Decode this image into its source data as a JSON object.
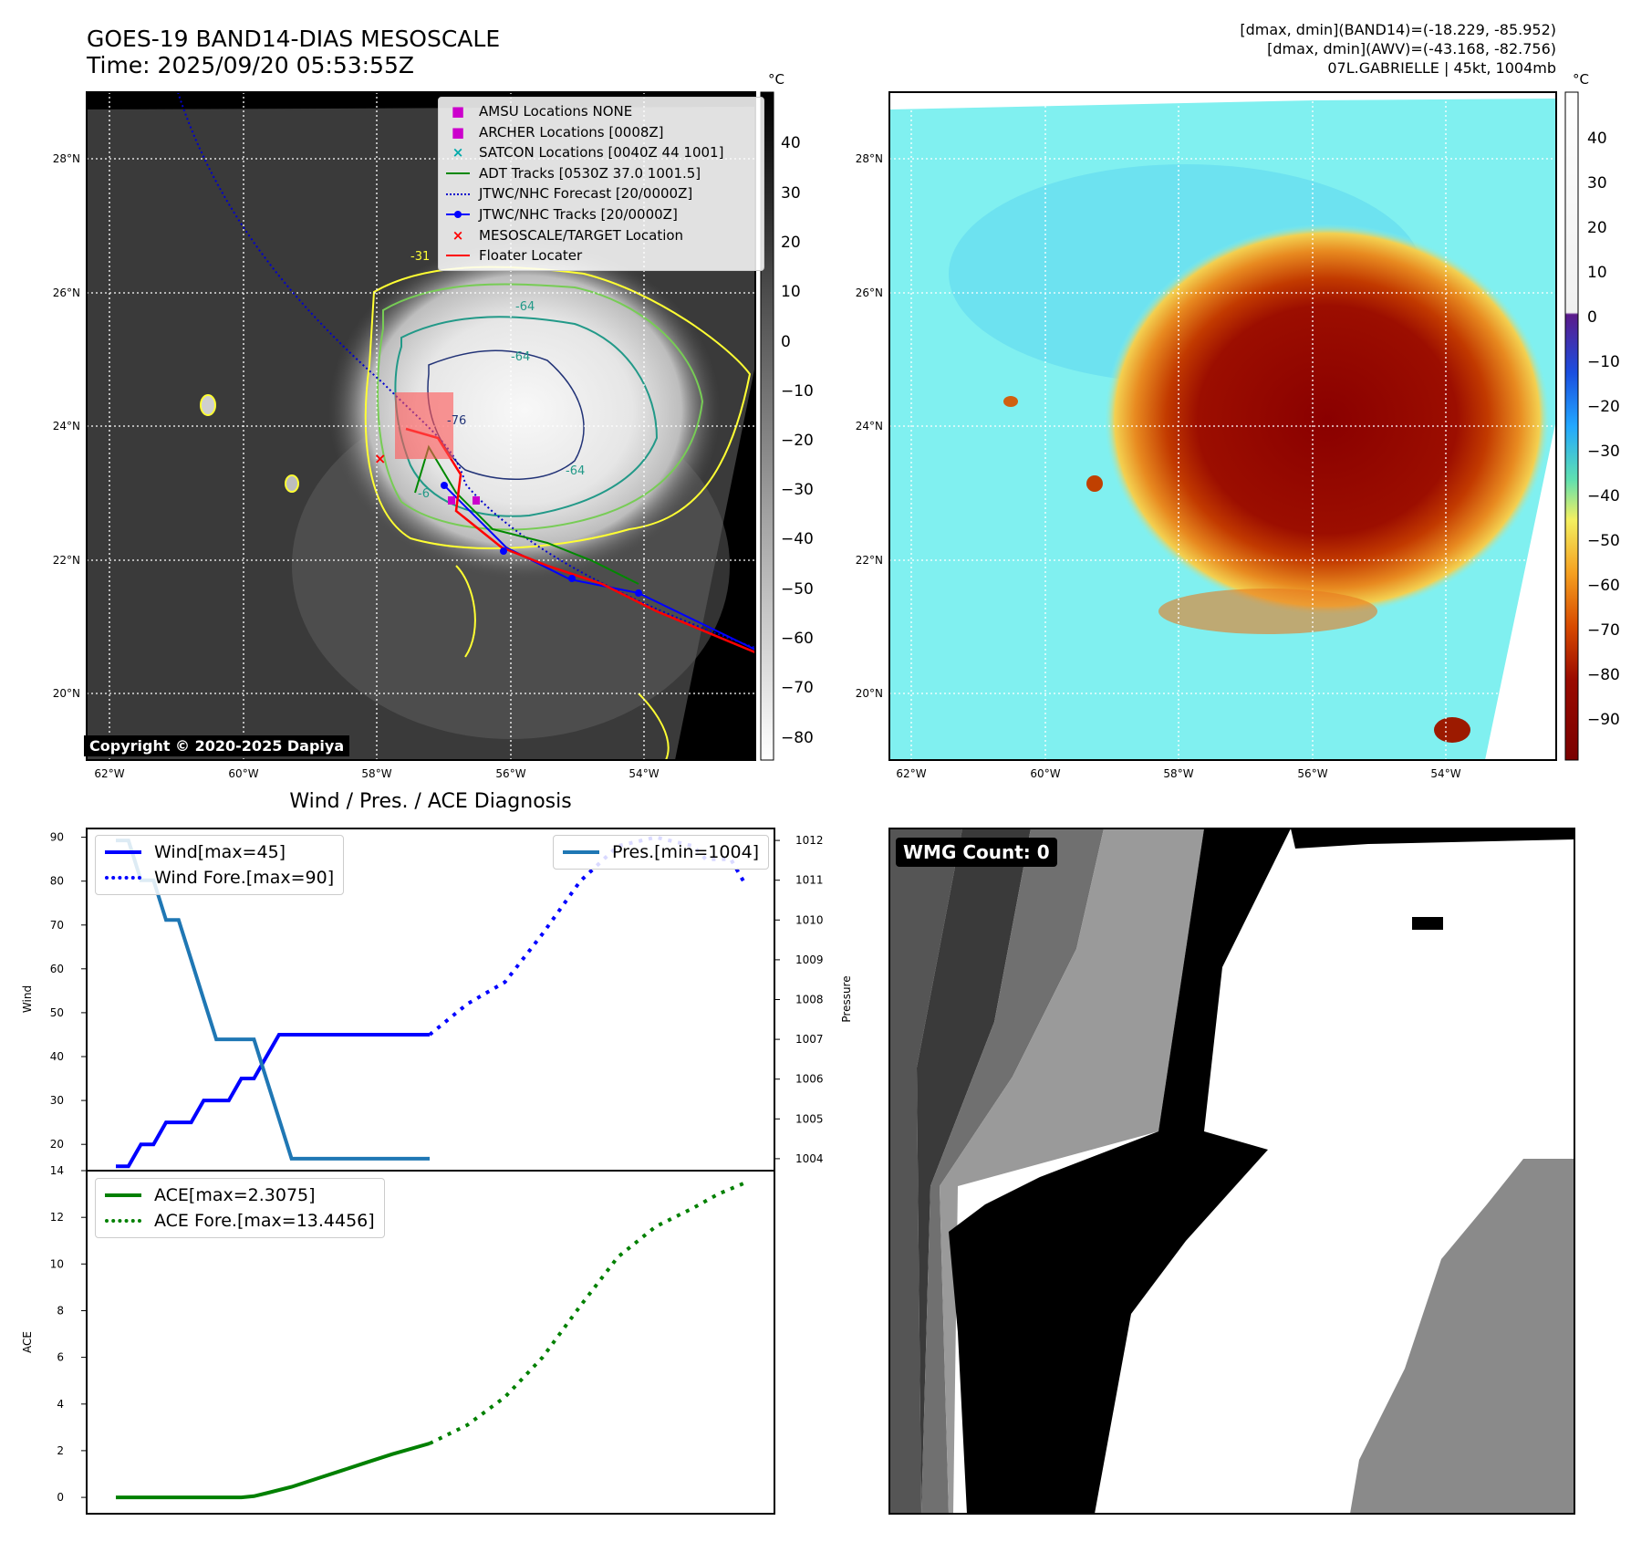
{
  "panel1": {
    "title_line1": "GOES-19 BAND14-DIAS MESOSCALE",
    "title_line2": "Time: 2025/09/20 05:53:55Z",
    "colorbar_unit": "°C",
    "colorbar_ticks": [
      "40",
      "30",
      "20",
      "10",
      "0",
      "−10",
      "−20",
      "−30",
      "−40",
      "−50",
      "−60",
      "−70",
      "−80"
    ],
    "lat_labels": [
      "28°N",
      "26°N",
      "24°N",
      "22°N",
      "20°N"
    ],
    "lon_labels": [
      "62°W",
      "60°W",
      "58°W",
      "56°W",
      "54°W"
    ],
    "copyright": "Copyright © 2020-2025 Dapiya",
    "contour_labels": [
      "-31",
      "-64",
      "-76",
      "-64",
      "-64",
      "-6"
    ],
    "legend": [
      {
        "label": "AMSU Locations NONE",
        "color": "#cc00cc",
        "marker": "square"
      },
      {
        "label": "ARCHER Locations [0008Z]",
        "color": "#cc00cc",
        "marker": "square"
      },
      {
        "label": "SATCON Locations [0040Z 44 1001]",
        "color": "#00aaaa",
        "marker": "x"
      },
      {
        "label": "ADT Tracks [0530Z 37.0 1001.5]",
        "color": "#008800",
        "marker": "line"
      },
      {
        "label": "JTWC/NHC Forecast [20/0000Z]",
        "color": "#0000cc",
        "marker": "dotted"
      },
      {
        "label": "JTWC/NHC Tracks [20/0000Z]",
        "color": "#0000ff",
        "marker": "line-dot"
      },
      {
        "label": "MESOSCALE/TARGET Location",
        "color": "#ff0000",
        "marker": "x"
      },
      {
        "label": "Floater Locater",
        "color": "#ff0000",
        "marker": "line"
      }
    ]
  },
  "panel2": {
    "info_line1": "[dmax, dmin](BAND14)=(-18.229, -85.952)",
    "info_line2": "[dmax, dmin](AWV)=(-43.168, -82.756)",
    "info_line3": "07L.GABRIELLE | 45kt, 1004mb",
    "colorbar_unit": "°C",
    "colorbar_ticks": [
      "40",
      "30",
      "20",
      "10",
      "0",
      "−10",
      "−20",
      "−30",
      "−40",
      "−50",
      "−60",
      "−70",
      "−80",
      "−90"
    ],
    "lat_labels": [
      "28°N",
      "26°N",
      "24°N",
      "22°N",
      "20°N"
    ],
    "lon_labels": [
      "62°W",
      "60°W",
      "58°W",
      "56°W",
      "54°W"
    ]
  },
  "panel3": {
    "title": "Wind / Pres. / ACE Diagnosis",
    "wind_ylabel": "Wind",
    "pres_ylabel": "Pressure",
    "ace_ylabel": "ACE",
    "wind_ticks": [
      "90",
      "80",
      "70",
      "60",
      "50",
      "40",
      "30",
      "20"
    ],
    "pres_ticks": [
      "1012",
      "1011",
      "1010",
      "1009",
      "1008",
      "1007",
      "1006",
      "1005",
      "1004"
    ],
    "ace_ticks": [
      "14",
      "12",
      "10",
      "8",
      "6",
      "4",
      "2",
      "0"
    ],
    "legend_wind": "Wind[max=45]",
    "legend_wind_fore": "Wind Fore.[max=90]",
    "legend_pres": "Pres.[min=1004]",
    "legend_ace": "ACE[max=2.3075]",
    "legend_ace_fore": "ACE Fore.[max=13.4456]"
  },
  "panel4": {
    "wmg_label": "WMG Count: 0"
  },
  "chart_data": [
    {
      "type": "line",
      "title": "Wind / Pres. / ACE Diagnosis",
      "ylabel": "Wind",
      "ylim": [
        14,
        92
      ],
      "series": [
        {
          "name": "Wind[max=45]",
          "color": "#0000ff",
          "style": "solid",
          "x": [
            0,
            1,
            2,
            3,
            4,
            5,
            6,
            7,
            8,
            9,
            10,
            11,
            12,
            13,
            14,
            15,
            16,
            17,
            18,
            19,
            20,
            21,
            22,
            23,
            24,
            25
          ],
          "values": [
            15,
            15,
            20,
            20,
            25,
            25,
            25,
            30,
            30,
            30,
            35,
            35,
            40,
            45,
            45,
            45,
            45,
            45,
            45,
            45,
            45,
            45,
            45,
            45,
            45,
            45
          ]
        },
        {
          "name": "Wind Fore.[max=90]",
          "color": "#0000ff",
          "style": "dotted",
          "x": [
            25,
            28,
            31,
            34,
            37,
            40,
            43,
            46,
            47,
            49,
            50
          ],
          "values": [
            45,
            52,
            57,
            68,
            80,
            88,
            90,
            88,
            85,
            85,
            80
          ]
        }
      ]
    },
    {
      "type": "line",
      "ylabel": "Pressure",
      "ylim": [
        1003.7,
        1012.3
      ],
      "series": [
        {
          "name": "Pres.[min=1004]",
          "color": "#1f77b4",
          "style": "solid",
          "x": [
            0,
            1,
            2,
            3,
            4,
            5,
            6,
            7,
            8,
            9,
            10,
            11,
            12,
            13,
            14,
            15,
            16,
            17,
            18,
            19,
            20,
            21,
            22,
            23,
            24,
            25
          ],
          "values": [
            1012,
            1012,
            1011,
            1011,
            1010,
            1010,
            1009,
            1008,
            1007,
            1007,
            1007,
            1007,
            1006,
            1005,
            1004,
            1004,
            1004,
            1004,
            1004,
            1004,
            1004,
            1004,
            1004,
            1004,
            1004,
            1004
          ]
        }
      ]
    },
    {
      "type": "line",
      "ylabel": "ACE",
      "ylim": [
        -0.7,
        14
      ],
      "series": [
        {
          "name": "ACE[max=2.3075]",
          "color": "#008000",
          "style": "solid",
          "x": [
            0,
            3,
            6,
            9,
            10,
            11,
            12,
            14,
            16,
            18,
            20,
            22,
            25
          ],
          "values": [
            0,
            0,
            0,
            0,
            0,
            0.05,
            0.18,
            0.45,
            0.8,
            1.15,
            1.5,
            1.85,
            2.31
          ]
        },
        {
          "name": "ACE Fore.[max=13.4456]",
          "color": "#008000",
          "style": "dotted",
          "x": [
            25,
            28,
            31,
            34,
            37,
            40,
            43,
            46,
            48,
            50
          ],
          "values": [
            2.31,
            3.1,
            4.3,
            6.0,
            8.2,
            10.3,
            11.6,
            12.4,
            13.0,
            13.45
          ]
        }
      ]
    }
  ]
}
